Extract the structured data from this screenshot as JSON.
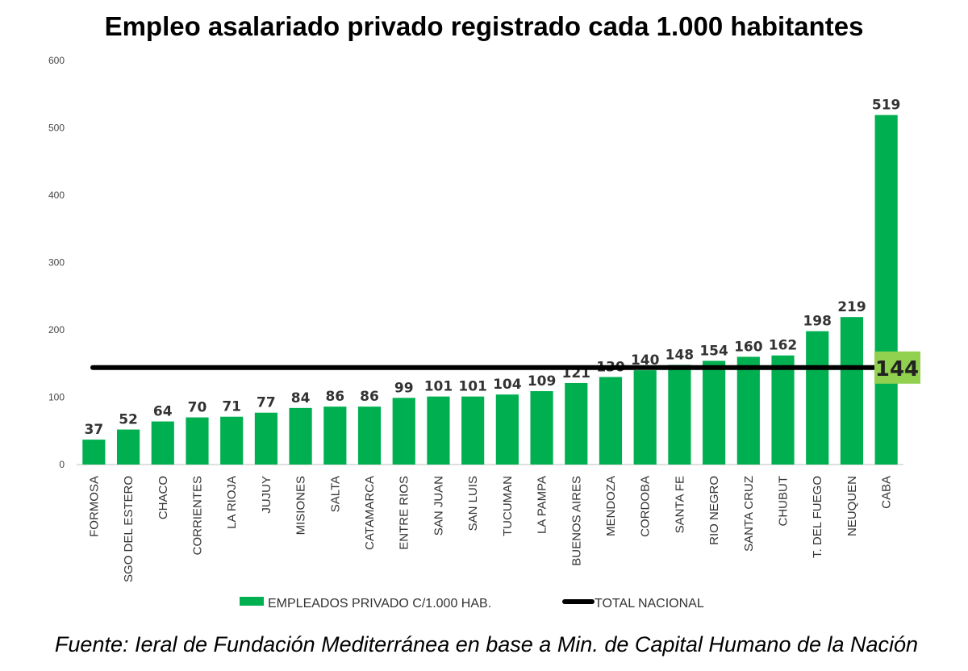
{
  "chart_data": {
    "type": "bar",
    "title": "Empleo asalariado privado registrado cada 1.000 habitantes",
    "categories": [
      "FORMOSA",
      "SGO DEL ESTERO",
      "CHACO",
      "CORRIENTES",
      "LA RIOJA",
      "JUJUY",
      "MISIONES",
      "SALTA",
      "CATAMARCA",
      "ENTRE RIOS",
      "SAN JUAN",
      "SAN LUIS",
      "TUCUMAN",
      "LA PAMPA",
      "BUENOS AIRES",
      "MENDOZA",
      "CORDOBA",
      "SANTA FE",
      "RIO NEGRO",
      "SANTA CRUZ",
      "CHUBUT",
      "T. DEL FUEGO",
      "NEUQUEN",
      "CABA"
    ],
    "series": [
      {
        "name": "EMPLEADOS PRIVADO C/1.000 HAB.",
        "color": "#00b050",
        "values": [
          37,
          52,
          64,
          70,
          71,
          77,
          84,
          86,
          86,
          99,
          101,
          101,
          104,
          109,
          121,
          130,
          140,
          148,
          154,
          160,
          162,
          198,
          219,
          519
        ]
      }
    ],
    "reference_line": {
      "name": "TOTAL NACIONAL",
      "value": 144,
      "label": "144",
      "color": "#000000",
      "label_bg": "#92d050"
    },
    "ylim": [
      0,
      600
    ],
    "yticks": [
      0,
      100,
      200,
      300,
      400,
      500,
      600
    ],
    "xlabel": "",
    "ylabel": "",
    "grid": false,
    "legend_position": "bottom"
  },
  "source": "Fuente: Ieral de Fundación Mediterránea en base a Min. de Capital Humano de la Nación"
}
